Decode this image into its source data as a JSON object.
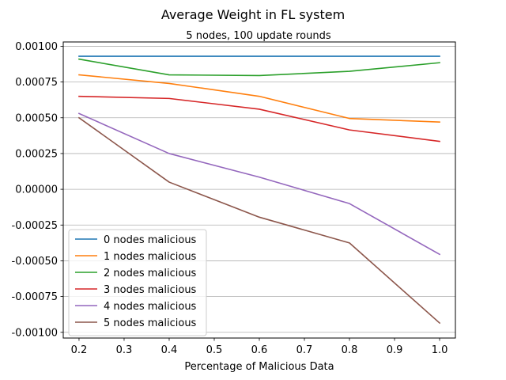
{
  "chart_data": {
    "type": "line",
    "title": "Average Weight in FL system",
    "subtitle": "5 nodes, 100 update rounds",
    "xlabel": "Percentage of Malicious Data",
    "ylabel": "",
    "x": [
      0.2,
      0.4,
      0.6,
      0.8,
      1.0
    ],
    "xlim": [
      0.165,
      1.035
    ],
    "ylim": [
      -0.00104,
      0.00103
    ],
    "x_ticks": [
      "0.2",
      "0.3",
      "0.4",
      "0.5",
      "0.6",
      "0.7",
      "0.8",
      "0.9",
      "1.0"
    ],
    "y_ticks": [
      "0.00100",
      "0.00075",
      "0.00050",
      "0.00025",
      "0.00000",
      "-0.00025",
      "-0.00050",
      "-0.00075",
      "-0.00100"
    ],
    "grid": "horizontal",
    "legend_position": "lower-left",
    "series": [
      {
        "name": "0 nodes malicious",
        "color": "#1f77b4",
        "values": [
          0.00093,
          0.00093,
          0.00093,
          0.00093,
          0.00093
        ]
      },
      {
        "name": "1 nodes malicious",
        "color": "#ff7f0e",
        "values": [
          0.0008,
          0.00074,
          0.00065,
          0.000495,
          0.00047
        ]
      },
      {
        "name": "2 nodes malicious",
        "color": "#2ca02c",
        "values": [
          0.00091,
          0.0008,
          0.000795,
          0.000825,
          0.000885
        ]
      },
      {
        "name": "3 nodes malicious",
        "color": "#d62728",
        "values": [
          0.00065,
          0.000635,
          0.00056,
          0.000415,
          0.000335
        ]
      },
      {
        "name": "4 nodes malicious",
        "color": "#9467bd",
        "values": [
          0.00053,
          0.00025,
          8.5e-05,
          -0.0001,
          -0.000455
        ]
      },
      {
        "name": "5 nodes malicious",
        "color": "#8c564b",
        "values": [
          0.0005,
          5e-05,
          -0.000195,
          -0.000375,
          -0.000935
        ]
      }
    ]
  }
}
